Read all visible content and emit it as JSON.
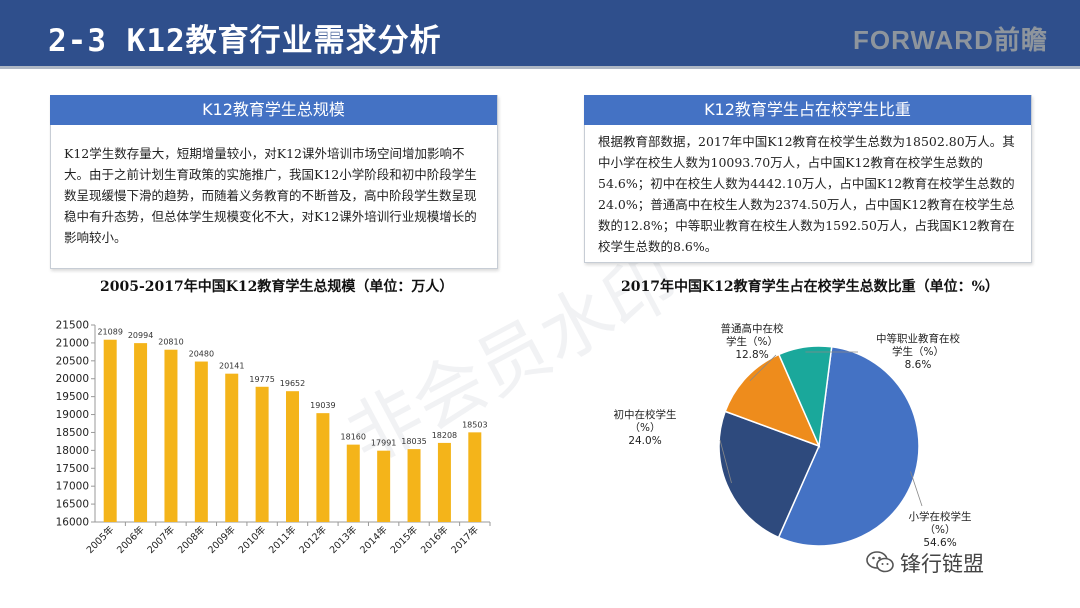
{
  "header": {
    "title": "2-3 K12教育行业需求分析",
    "logo": "FORWARD前瞻"
  },
  "left_panel": {
    "title": "K12教育学生总规模",
    "text": "K12学生数存量大，短期增量较小，对K12课外培训市场空间增加影响不大。由于之前计划生育政策的实施推广，我国K12小学阶段和初中阶段学生数呈现缓慢下滑的趋势，而随着义务教育的不断普及，高中阶段学生数呈现稳中有升态势，但总体学生规模变化不大，对K12课外培训行业规模增长的影响较小。"
  },
  "right_panel": {
    "title": "K12教育学生占在校学生比重",
    "text": "根据教育部数据，2017年中国K12教育在校学生总数为18502.80万人。其中小学在校生人数为10093.70万人，占中国K12教育在校学生总数的54.6%；初中在校生人数为4442.10万人，占中国K12教育在校学生总数的24.0%；普通高中在校生人数为2374.50万人，占中国K12教育在校学生总数的12.8%；中等职业教育在校生人数为1592.50万人，占我国K12教育在校学生总数的8.6%。"
  },
  "watermark": "非会员水印",
  "footer": {
    "brand": "锋行链盟"
  },
  "colors": {
    "header": "#2f4f8c",
    "bar": "#f4b41a",
    "pie_primary": "#4472c4",
    "pie_middle": "#2e4a7d",
    "pie_high": "#ee8c1c",
    "pie_vocational": "#1aa89b"
  },
  "chart_data": [
    {
      "type": "bar",
      "title": "2005-2017年中国K12教育学生总规模（单位：万人）",
      "categories": [
        "2005年",
        "2006年",
        "2007年",
        "2008年",
        "2009年",
        "2010年",
        "2011年",
        "2012年",
        "2013年",
        "2014年",
        "2015年",
        "2016年",
        "2017年"
      ],
      "values": [
        21089,
        20994,
        20810,
        20480,
        20141,
        19775,
        19652,
        19039,
        18160,
        17991,
        18035,
        18208,
        18503
      ],
      "ylim": [
        16000,
        21500
      ],
      "yticks": [
        "16000",
        "16500",
        "17000",
        "17500",
        "18000",
        "18500",
        "19000",
        "19500",
        "20000",
        "20500",
        "21000",
        "21500"
      ],
      "grid": false
    },
    {
      "type": "pie",
      "title": "2017年中国K12教育学生占在校学生总数比重（单位：%）",
      "slices": [
        {
          "label": "小学在校学生（%）",
          "value": 54.6,
          "value_label": "54.6%"
        },
        {
          "label": "初中在校学生（%）",
          "value": 24.0,
          "value_label": "24.0%"
        },
        {
          "label": "普通高中在校学生（%）",
          "value": 12.8,
          "value_label": "12.8%"
        },
        {
          "label": "中等职业教育在校学生（%）",
          "value": 8.6,
          "value_label": "8.6%"
        }
      ]
    }
  ]
}
